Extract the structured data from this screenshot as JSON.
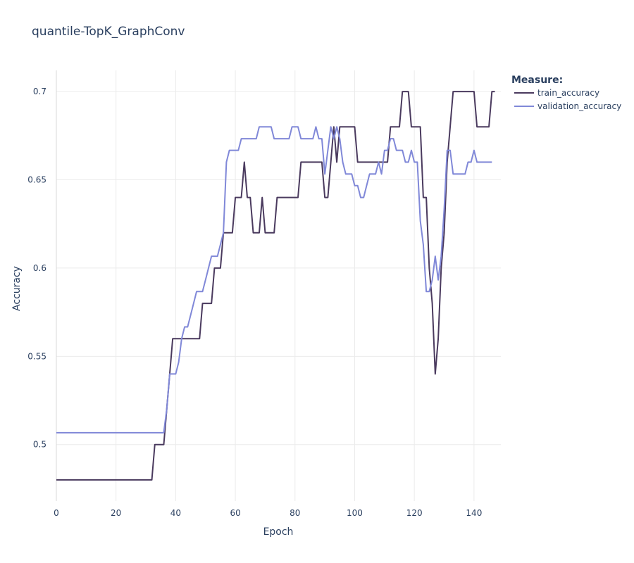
{
  "chart_data": {
    "type": "line",
    "title": "quantile-TopK_GraphConv",
    "xlabel": "Epoch",
    "ylabel": "Accuracy",
    "xlim": [
      0,
      149
    ],
    "ylim": [
      0.468,
      0.712
    ],
    "xticks": [
      0,
      20,
      40,
      60,
      80,
      100,
      120,
      140
    ],
    "yticks": [
      0.5,
      0.55,
      0.6,
      0.65,
      0.7
    ],
    "ytick_labels": [
      "0.5",
      "0.55",
      "0.6",
      "0.65",
      "0.7"
    ],
    "grid": true,
    "legend": {
      "title": "Measure:",
      "placement": "top-right outside"
    },
    "series": [
      {
        "name": "train_accuracy",
        "color": "#4a3a5e",
        "values": [
          0.48,
          0.48,
          0.48,
          0.48,
          0.48,
          0.48,
          0.48,
          0.48,
          0.48,
          0.48,
          0.48,
          0.48,
          0.48,
          0.48,
          0.48,
          0.48,
          0.48,
          0.48,
          0.48,
          0.48,
          0.48,
          0.48,
          0.48,
          0.48,
          0.48,
          0.48,
          0.48,
          0.48,
          0.48,
          0.48,
          0.48,
          0.48,
          0.48,
          0.5,
          0.5,
          0.5,
          0.5,
          0.52,
          0.54,
          0.56,
          0.56,
          0.56,
          0.56,
          0.56,
          0.56,
          0.56,
          0.56,
          0.56,
          0.56,
          0.58,
          0.58,
          0.58,
          0.58,
          0.6,
          0.6,
          0.6,
          0.62,
          0.62,
          0.62,
          0.62,
          0.64,
          0.64,
          0.64,
          0.66,
          0.64,
          0.64,
          0.62,
          0.62,
          0.62,
          0.64,
          0.62,
          0.62,
          0.62,
          0.62,
          0.64,
          0.64,
          0.64,
          0.64,
          0.64,
          0.64,
          0.64,
          0.64,
          0.66,
          0.66,
          0.66,
          0.66,
          0.66,
          0.66,
          0.66,
          0.66,
          0.64,
          0.64,
          0.66,
          0.68,
          0.66,
          0.68,
          0.68,
          0.68,
          0.68,
          0.68,
          0.68,
          0.66,
          0.66,
          0.66,
          0.66,
          0.66,
          0.66,
          0.66,
          0.66,
          0.66,
          0.66,
          0.66,
          0.68,
          0.68,
          0.68,
          0.68,
          0.7,
          0.7,
          0.7,
          0.68,
          0.68,
          0.68,
          0.68,
          0.64,
          0.64,
          0.6,
          0.58,
          0.54,
          0.56,
          0.6,
          0.62,
          0.66,
          0.68,
          0.7,
          0.7,
          0.7,
          0.7,
          0.7,
          0.7,
          0.7,
          0.7,
          0.68,
          0.68,
          0.68,
          0.68,
          0.68,
          0.7,
          0.7
        ]
      },
      {
        "name": "validation_accuracy",
        "color": "#8088d8",
        "values": [
          0.5067,
          0.5067,
          0.5067,
          0.5067,
          0.5067,
          0.5067,
          0.5067,
          0.5067,
          0.5067,
          0.5067,
          0.5067,
          0.5067,
          0.5067,
          0.5067,
          0.5067,
          0.5067,
          0.5067,
          0.5067,
          0.5067,
          0.5067,
          0.5067,
          0.5067,
          0.5067,
          0.5067,
          0.5067,
          0.5067,
          0.5067,
          0.5067,
          0.5067,
          0.5067,
          0.5067,
          0.5067,
          0.5067,
          0.5067,
          0.5067,
          0.5067,
          0.5067,
          0.52,
          0.54,
          0.54,
          0.54,
          0.5467,
          0.56,
          0.5667,
          0.5667,
          0.5733,
          0.58,
          0.5867,
          0.5867,
          0.5867,
          0.5933,
          0.6,
          0.6067,
          0.6067,
          0.6067,
          0.6133,
          0.62,
          0.66,
          0.6667,
          0.6667,
          0.6667,
          0.6667,
          0.6733,
          0.6733,
          0.6733,
          0.6733,
          0.6733,
          0.6733,
          0.68,
          0.68,
          0.68,
          0.68,
          0.68,
          0.6733,
          0.6733,
          0.6733,
          0.6733,
          0.6733,
          0.6733,
          0.68,
          0.68,
          0.68,
          0.6733,
          0.6733,
          0.6733,
          0.6733,
          0.6733,
          0.68,
          0.6733,
          0.6733,
          0.6533,
          0.6667,
          0.68,
          0.6733,
          0.68,
          0.6733,
          0.66,
          0.6533,
          0.6533,
          0.6533,
          0.6467,
          0.6467,
          0.64,
          0.64,
          0.6467,
          0.6533,
          0.6533,
          0.6533,
          0.66,
          0.6533,
          0.6667,
          0.6667,
          0.6733,
          0.6733,
          0.6667,
          0.6667,
          0.6667,
          0.66,
          0.66,
          0.6667,
          0.66,
          0.66,
          0.6267,
          0.6133,
          0.5867,
          0.5867,
          0.5933,
          0.6067,
          0.5933,
          0.6067,
          0.6333,
          0.6667,
          0.6667,
          0.6533,
          0.6533,
          0.6533,
          0.6533,
          0.6533,
          0.66,
          0.66,
          0.6667,
          0.66,
          0.66,
          0.66,
          0.66,
          0.66,
          0.66
        ]
      }
    ]
  }
}
